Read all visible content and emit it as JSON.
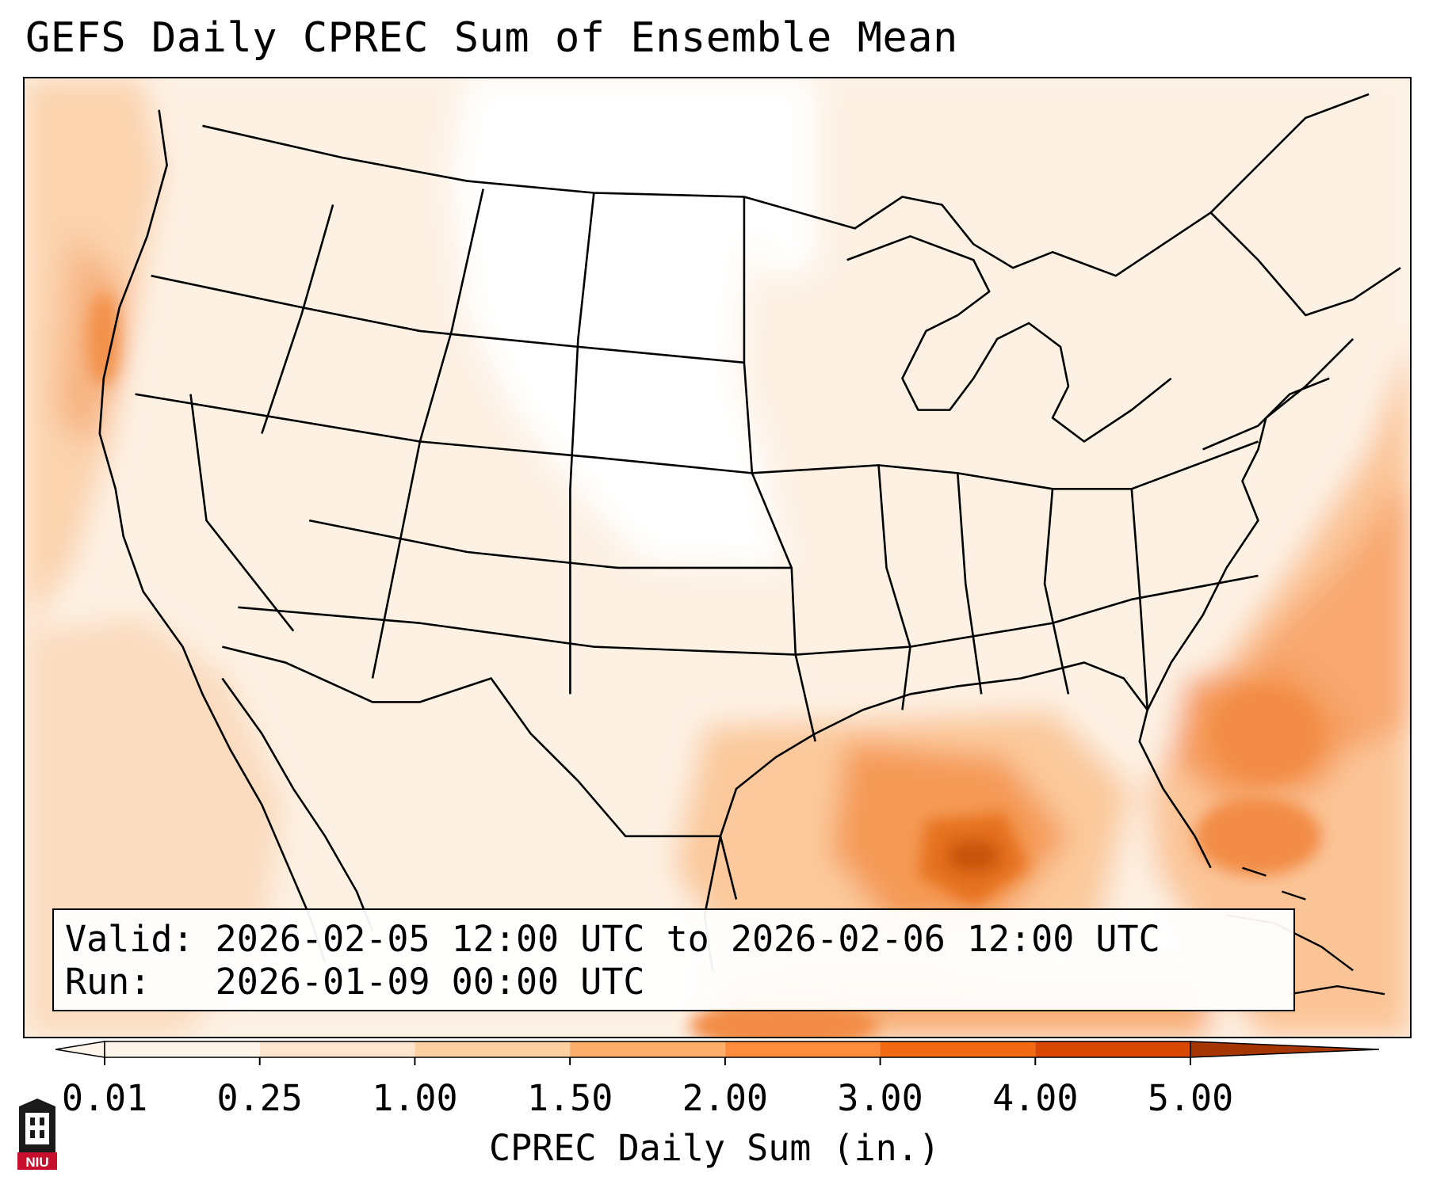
{
  "title": "GEFS Daily CPREC Sum of Ensemble Mean",
  "info": {
    "valid_line": "Valid: 2026-02-05 12:00 UTC to 2026-02-06 12:00 UTC",
    "run_line": "Run:   2026-01-09 00:00 UTC"
  },
  "colorbar": {
    "label": "CPREC Daily Sum (in.)",
    "ticks": [
      "0.01",
      "0.25",
      "1.00",
      "1.50",
      "2.00",
      "3.00",
      "4.00",
      "5.00"
    ],
    "colors": [
      "#fff5eb",
      "#fee6ce",
      "#fdd0a2",
      "#fdae6b",
      "#fd8d3c",
      "#f16913",
      "#d94801",
      "#a63603"
    ],
    "extend": "both"
  },
  "logo": {
    "text": "NIU",
    "primary_color": "#c8102e",
    "secondary_color": "#000000"
  },
  "map": {
    "projection": "Lambert Conformal",
    "region": "CONUS",
    "features": [
      "state-borders",
      "coastlines",
      "country-borders"
    ],
    "fill_colors": [
      "#fdf3e8",
      "#fce3cc",
      "#fbcfa4",
      "#f8b27c",
      "#f59a56",
      "#e86e24",
      "#c85209"
    ]
  }
}
